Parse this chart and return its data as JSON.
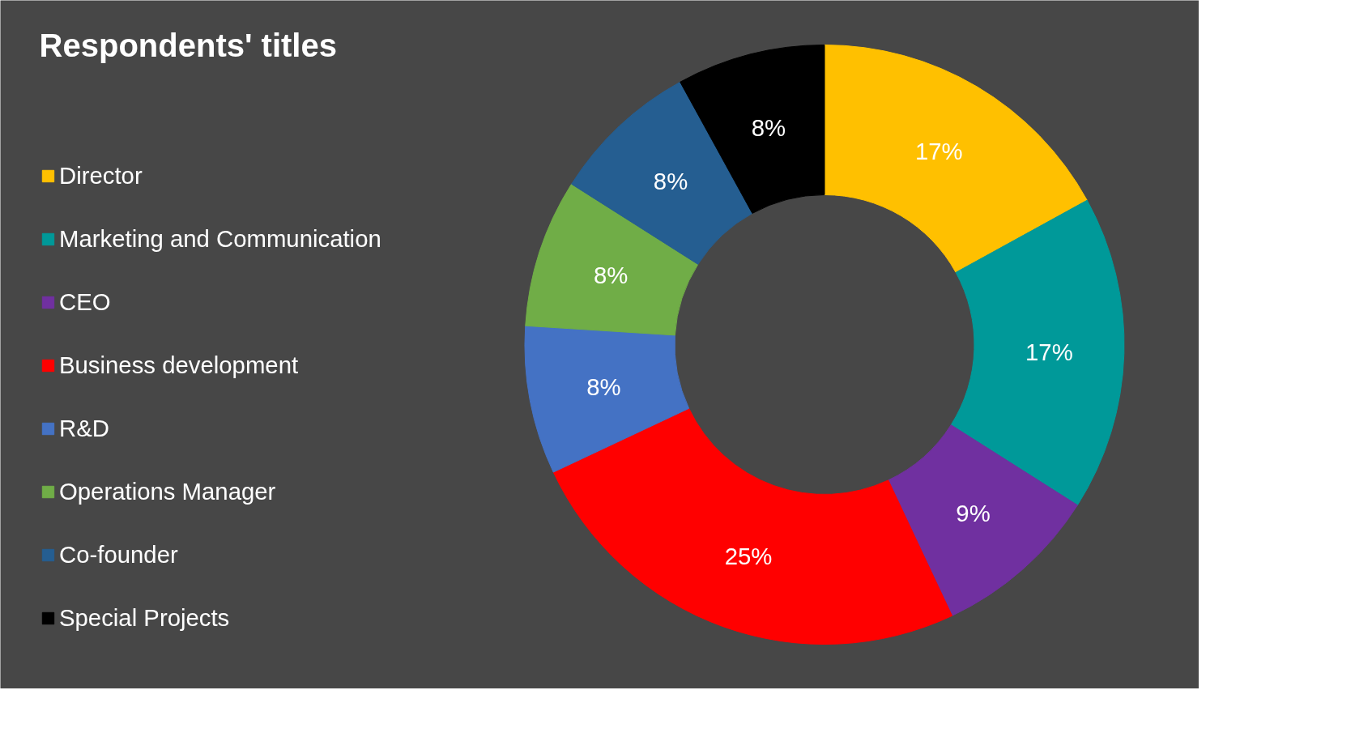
{
  "chart_data": {
    "type": "donut",
    "title": "Respondents' titles",
    "categories": [
      "Director",
      "Marketing and Communication",
      "CEO",
      "Business development",
      "R&D",
      "Operations Manager",
      "Co-founder",
      "Special Projects"
    ],
    "values": [
      17,
      17,
      9,
      25,
      8,
      8,
      8,
      8
    ],
    "value_labels": [
      "17%",
      "17%",
      "9%",
      "25%",
      "8%",
      "8%",
      "8%",
      "8%"
    ],
    "colors": [
      "#ffc000",
      "#009999",
      "#7030a0",
      "#ff0000",
      "#4472c4",
      "#70ad47",
      "#255e91",
      "#000000"
    ],
    "legend": "left"
  }
}
